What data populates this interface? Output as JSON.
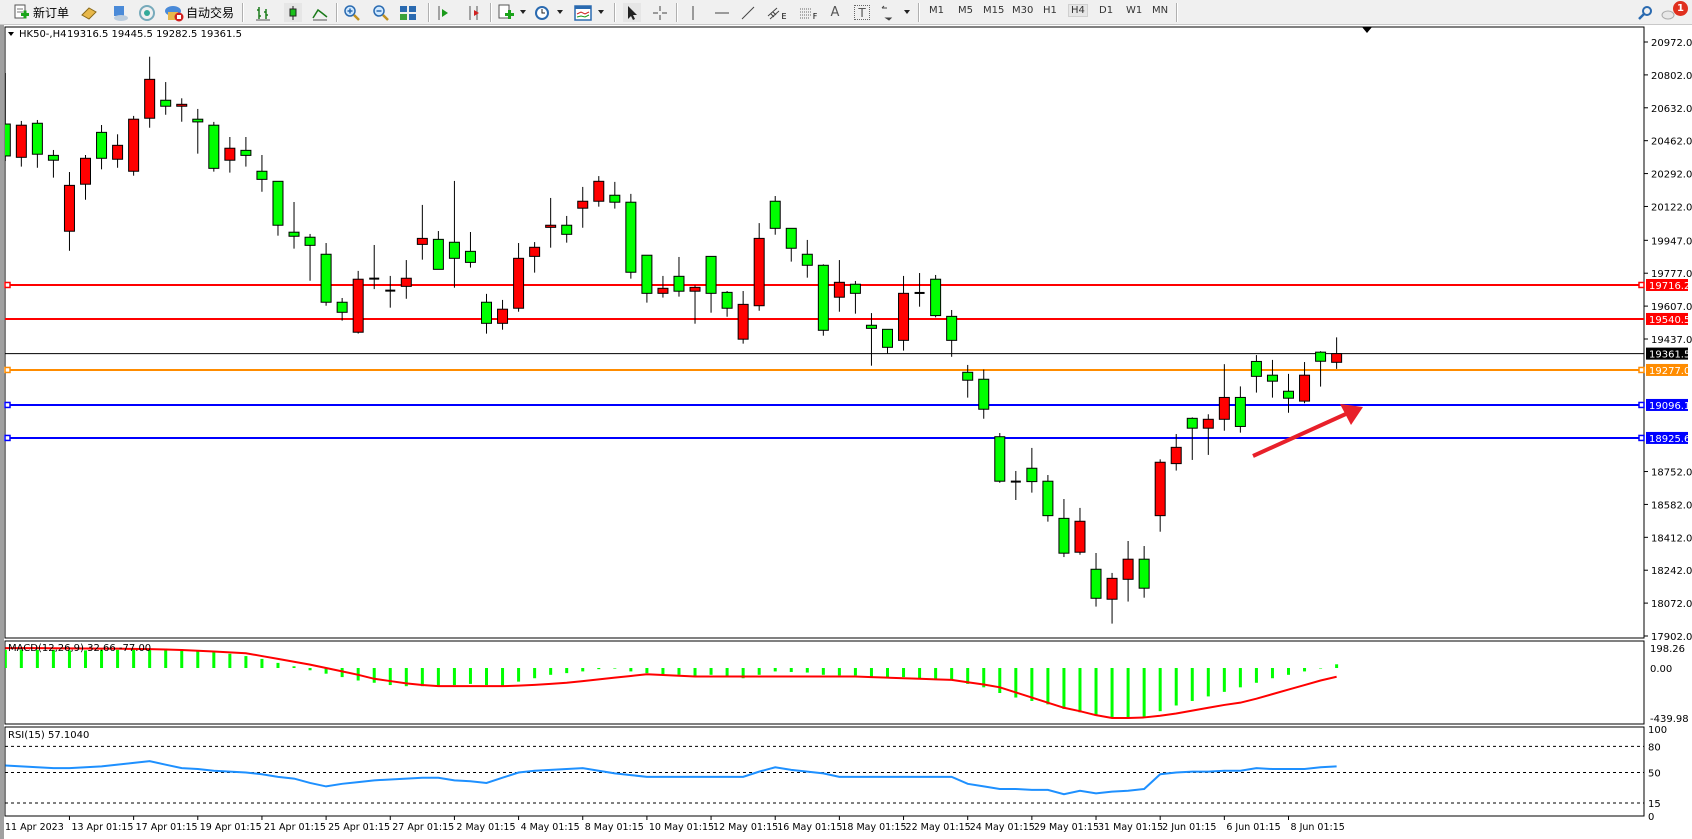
{
  "toolbar": {
    "new_order": "新订单",
    "auto_trading": "自动交易",
    "timeframes": [
      "M1",
      "M5",
      "M15",
      "M30",
      "H1",
      "H4",
      "D1",
      "W1",
      "MN"
    ],
    "active_timeframe": "H4",
    "notification_count": "1",
    "fib_channel_suffix": "E",
    "fib_suffix": "F",
    "text_tool": "A",
    "label_tool": "T"
  },
  "chart": {
    "symbol": "HK50-,H4",
    "ohlc": "19316.5 19445.5 19282.5 19361.5"
  },
  "colors": {
    "bull_candle": "#ff0000",
    "bear_candle": "#00ff00",
    "resistance": "#ff0000",
    "pivot": "#ff8c00",
    "support": "#0000ff",
    "current_price": "#000000",
    "macd_histogram": "#00ff00",
    "macd_signal": "#ff0000",
    "rsi_line": "#1e90ff",
    "annotation_arrow": "#e8202a"
  },
  "chart_data": [
    {
      "type": "candlestick",
      "symbol": "HK50-",
      "timeframe": "H4",
      "time_labels": [
        "11 Apr 2023",
        "13 Apr 01:15",
        "17 Apr 01:15",
        "19 Apr 01:15",
        "21 Apr 01:15",
        "25 Apr 01:15",
        "27 Apr 01:15",
        "2 May 01:15",
        "4 May 01:15",
        "8 May 01:15",
        "10 May 01:15",
        "12 May 01:15",
        "16 May 01:15",
        "18 May 01:15",
        "22 May 01:15",
        "24 May 01:15",
        "29 May 01:15",
        "31 May 01:15",
        "2 Jun 01:15",
        "6 Jun 01:15",
        "8 Jun 01:15"
      ],
      "price_ticks": [
        "20972.0",
        "20802.0",
        "20632.0",
        "20462.0",
        "20292.0",
        "20122.0",
        "19947.0",
        "19777.0",
        "19607.0",
        "19437.0",
        "18752.0",
        "18582.0",
        "18412.0",
        "18242.0",
        "18072.0",
        "17902.0"
      ],
      "ylim": [
        17902,
        20972
      ],
      "ohlc": [
        [
          20548,
          20812,
          20357,
          20383
        ],
        [
          20376,
          20564,
          20328,
          20542
        ],
        [
          20552,
          20569,
          20322,
          20392
        ],
        [
          20386,
          20414,
          20271,
          20361
        ],
        [
          19994,
          20300,
          19893,
          20231
        ],
        [
          20237,
          20388,
          20157,
          20371
        ],
        [
          20505,
          20543,
          20314,
          20371
        ],
        [
          20366,
          20495,
          20322,
          20438
        ],
        [
          20304,
          20590,
          20281,
          20573
        ],
        [
          20578,
          20896,
          20529,
          20779
        ],
        [
          20671,
          20765,
          20596,
          20640
        ],
        [
          20640,
          20681,
          20560,
          20650
        ],
        [
          20573,
          20626,
          20395,
          20559
        ],
        [
          20542,
          20559,
          20302,
          20319
        ],
        [
          20361,
          20481,
          20297,
          20423
        ],
        [
          20412,
          20481,
          20328,
          20386
        ],
        [
          20304,
          20388,
          20198,
          20262
        ],
        [
          20252,
          20252,
          19971,
          20025
        ],
        [
          19989,
          20145,
          19904,
          19968
        ],
        [
          19963,
          19980,
          19738,
          19921
        ],
        [
          19875,
          19933,
          19609,
          19627
        ],
        [
          19627,
          19649,
          19532,
          19575
        ],
        [
          19472,
          19789,
          19465,
          19746
        ],
        [
          19749,
          19923,
          19695,
          19749
        ],
        [
          19687,
          19763,
          19599,
          19687
        ],
        [
          19709,
          19845,
          19645,
          19751
        ],
        [
          19926,
          20130,
          19847,
          19957
        ],
        [
          19952,
          19995,
          19797,
          19797
        ],
        [
          19937,
          20254,
          19702,
          19854
        ],
        [
          19890,
          19990,
          19806,
          19833
        ],
        [
          19627,
          19670,
          19465,
          19518
        ],
        [
          19518,
          19639,
          19485,
          19591
        ],
        [
          19596,
          19933,
          19578,
          19854
        ],
        [
          19864,
          19938,
          19780,
          19911
        ],
        [
          20014,
          20166,
          19909,
          20025
        ],
        [
          20025,
          20073,
          19935,
          19978
        ],
        [
          20113,
          20223,
          20012,
          20149
        ],
        [
          20149,
          20279,
          20121,
          20252
        ],
        [
          20180,
          20249,
          20111,
          20144
        ],
        [
          20144,
          20187,
          19749,
          19782
        ],
        [
          19870,
          19870,
          19625,
          19673
        ],
        [
          19673,
          19763,
          19651,
          19699
        ],
        [
          19761,
          19861,
          19656,
          19684
        ],
        [
          19684,
          19715,
          19516,
          19704
        ],
        [
          19864,
          19864,
          19573,
          19673
        ],
        [
          19678,
          19685,
          19552,
          19596
        ],
        [
          19436,
          19685,
          19413,
          19616
        ],
        [
          19609,
          20036,
          19583,
          19957
        ],
        [
          20149,
          20176,
          19976,
          20009
        ],
        [
          20009,
          20009,
          19837,
          19906
        ],
        [
          19875,
          19949,
          19754,
          19818
        ],
        [
          19818,
          19823,
          19454,
          19482
        ],
        [
          19653,
          19845,
          19578,
          19730
        ],
        [
          19720,
          19737,
          19568,
          19673
        ],
        [
          19508,
          19571,
          19299,
          19492
        ],
        [
          19487,
          19487,
          19363,
          19394
        ],
        [
          19430,
          19763,
          19377,
          19673
        ],
        [
          19675,
          19778,
          19604,
          19675
        ],
        [
          19746,
          19768,
          19549,
          19558
        ],
        [
          19554,
          19587,
          19345,
          19430
        ],
        [
          19265,
          19303,
          19134,
          19224
        ],
        [
          19229,
          19279,
          19025,
          19074
        ],
        [
          18932,
          18951,
          18694,
          18702
        ],
        [
          18700,
          18755,
          18605,
          18700
        ],
        [
          18769,
          18874,
          18643,
          18700
        ],
        [
          18702,
          18734,
          18493,
          18524
        ],
        [
          18510,
          18610,
          18310,
          18330
        ],
        [
          18335,
          18564,
          18322,
          18495
        ],
        [
          18247,
          18331,
          18054,
          18097
        ],
        [
          18092,
          18228,
          17966,
          18200
        ],
        [
          18195,
          18393,
          18080,
          18299
        ],
        [
          18299,
          18367,
          18100,
          18149
        ],
        [
          18524,
          18815,
          18441,
          18800
        ],
        [
          18793,
          18946,
          18757,
          18877
        ],
        [
          19027,
          19032,
          18812,
          18976
        ],
        [
          18976,
          19048,
          18838,
          19022
        ],
        [
          19022,
          19307,
          18963,
          19135
        ],
        [
          19135,
          19192,
          18953,
          18985
        ],
        [
          19321,
          19354,
          19160,
          19244
        ],
        [
          19250,
          19329,
          19134,
          19219
        ],
        [
          19167,
          19257,
          19056,
          19131
        ],
        [
          19116,
          19318,
          19105,
          19250
        ],
        [
          19369,
          19374,
          19191,
          19322
        ],
        [
          19316.5,
          19445.5,
          19282.5,
          19361.5
        ]
      ],
      "horizontal_levels": [
        {
          "price": 19716.2,
          "label": "19716.2",
          "color": "#ff0000",
          "selected": true
        },
        {
          "price": 19540.5,
          "label": "19540.5",
          "color": "#ff0000",
          "selected": false
        },
        {
          "price": 19361.5,
          "label": "19361.5",
          "color": "#000000",
          "selected": false,
          "current": true
        },
        {
          "price": 19277.0,
          "label": "19277.0",
          "color": "#ff8c00",
          "selected": true
        },
        {
          "price": 19096.1,
          "label": "19096.1",
          "color": "#0000ff",
          "selected": true
        },
        {
          "price": 18925.6,
          "label": "18925.6",
          "color": "#0000ff",
          "selected": true
        }
      ]
    },
    {
      "type": "bar+line",
      "label": "MACD(12,26,9) 32.66 -77.00",
      "ticks": [
        "198.26",
        "0.00",
        "-439.98"
      ],
      "ylim": [
        -439.98,
        198.26
      ],
      "histogram": [
        160,
        160,
        160,
        160,
        155,
        155,
        160,
        160,
        165,
        170,
        170,
        165,
        155,
        140,
        125,
        105,
        80,
        45,
        15,
        -20,
        -50,
        -80,
        -110,
        -130,
        -150,
        -160,
        -160,
        -155,
        -150,
        -140,
        -150,
        -155,
        -120,
        -90,
        -60,
        -45,
        -30,
        -10,
        -5,
        -30,
        -45,
        -55,
        -60,
        -70,
        -60,
        -75,
        -90,
        -60,
        -30,
        -35,
        -40,
        -60,
        -65,
        -65,
        -75,
        -85,
        -80,
        -90,
        -100,
        -110,
        -140,
        -170,
        -220,
        -260,
        -290,
        -320,
        -360,
        -390,
        -420,
        -440,
        -440,
        -430,
        -380,
        -330,
        -290,
        -250,
        -210,
        -170,
        -130,
        -90,
        -60,
        -30,
        0,
        32.66
      ],
      "signal": [
        175,
        175,
        175,
        174,
        173,
        172,
        171,
        170,
        168,
        166,
        163,
        158,
        152,
        145,
        138,
        130,
        105,
        80,
        55,
        30,
        0,
        -30,
        -60,
        -95,
        -115,
        -135,
        -150,
        -160,
        -160,
        -160,
        -160,
        -160,
        -155,
        -148,
        -140,
        -130,
        -115,
        -100,
        -85,
        -70,
        -55,
        -62,
        -68,
        -75,
        -75,
        -75,
        -75,
        -75,
        -75,
        -75,
        -75,
        -75,
        -75,
        -75,
        -80,
        -85,
        -90,
        -95,
        -100,
        -105,
        -125,
        -145,
        -170,
        -215,
        -260,
        -305,
        -350,
        -380,
        -415,
        -440,
        -440,
        -435,
        -420,
        -400,
        -375,
        -350,
        -325,
        -305,
        -270,
        -230,
        -190,
        -150,
        -110,
        -77
      ]
    },
    {
      "type": "line",
      "label": "RSI(15) 57.1040",
      "ticks": [
        "100",
        "80",
        "50",
        "15",
        "0"
      ],
      "levels": [
        80,
        50,
        15
      ],
      "ylim": [
        0,
        100
      ],
      "values": [
        58,
        57,
        56,
        55,
        55,
        56,
        57,
        59,
        61,
        63,
        59,
        55,
        54,
        52,
        51,
        50,
        48,
        45,
        43,
        38,
        34,
        37,
        39,
        41,
        42,
        43,
        44,
        44,
        41,
        40,
        38,
        44,
        50,
        52,
        53,
        54,
        55,
        52,
        49,
        47,
        45,
        45,
        45,
        45,
        45,
        45,
        45,
        51,
        56,
        53,
        51,
        49,
        45,
        45,
        45,
        45,
        45,
        45,
        45,
        45,
        37,
        34,
        31,
        31,
        30,
        30,
        25,
        29,
        26,
        28,
        29,
        31,
        48,
        50,
        51,
        51,
        52,
        52,
        55,
        54,
        54,
        54,
        56,
        57.104
      ]
    }
  ]
}
